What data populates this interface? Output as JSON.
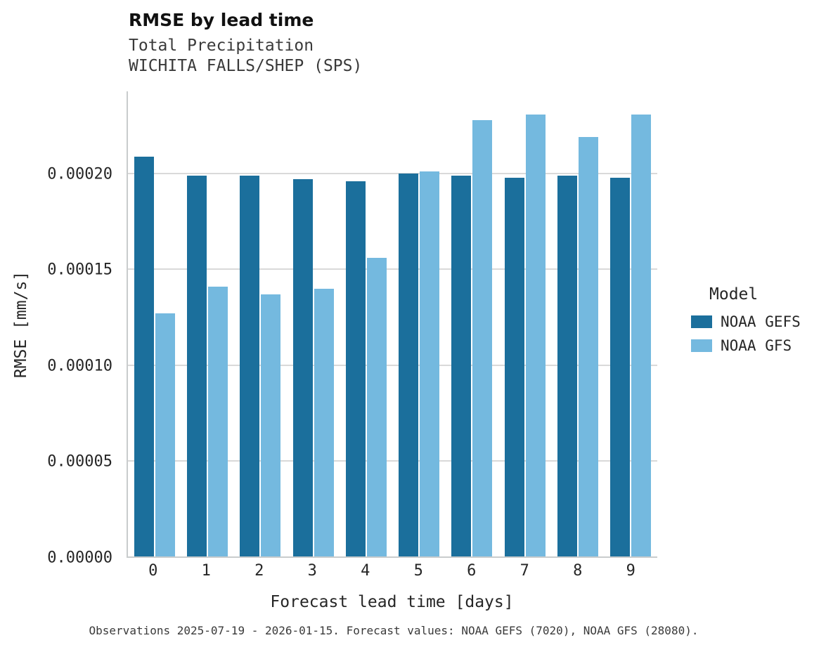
{
  "header": {
    "title": "RMSE by lead time",
    "subtitle1": "Total Precipitation",
    "subtitle2": "WICHITA FALLS/SHEP (SPS)"
  },
  "caption": "Observations 2025-07-19 - 2026-01-15. Forecast values: NOAA GEFS (7020), NOAA GFS (28080).",
  "legend": {
    "title": "Model",
    "entries": [
      {
        "label": "NOAA GEFS",
        "color": "#1b6f9c"
      },
      {
        "label": "NOAA GFS",
        "color": "#74b9df"
      }
    ]
  },
  "colors": {
    "gefs": "#1b6f9c",
    "gfs": "#74b9df",
    "gridline": "#d9d9d9",
    "spine": "#c9cccd"
  },
  "chart_data": {
    "type": "bar",
    "title": "RMSE by lead time",
    "subtitle": [
      "Total Precipitation",
      "WICHITA FALLS/SHEP (SPS)"
    ],
    "xlabel": "Forecast lead time [days]",
    "ylabel": "RMSE [mm/s]",
    "categories": [
      "0",
      "1",
      "2",
      "3",
      "4",
      "5",
      "6",
      "7",
      "8",
      "9"
    ],
    "series": [
      {
        "name": "NOAA GEFS",
        "color": "#1b6f9c",
        "values": [
          0.000209,
          0.000199,
          0.000199,
          0.000197,
          0.000196,
          0.0002,
          0.000199,
          0.000198,
          0.000199,
          0.000198
        ]
      },
      {
        "name": "NOAA GFS",
        "color": "#74b9df",
        "values": [
          0.000127,
          0.000141,
          0.000137,
          0.00014,
          0.000156,
          0.000201,
          0.000228,
          0.000231,
          0.000219,
          0.000231
        ]
      }
    ],
    "ylim": [
      0,
      0.000243
    ],
    "yticks": [
      {
        "label": "0.00000",
        "value": 0
      },
      {
        "label": "0.00005",
        "value": 5e-05
      },
      {
        "label": "0.00010",
        "value": 0.0001
      },
      {
        "label": "0.00015",
        "value": 0.00015
      },
      {
        "label": "0.00020",
        "value": 0.0002
      }
    ],
    "grid": "horizontal",
    "legend_position": "right"
  }
}
